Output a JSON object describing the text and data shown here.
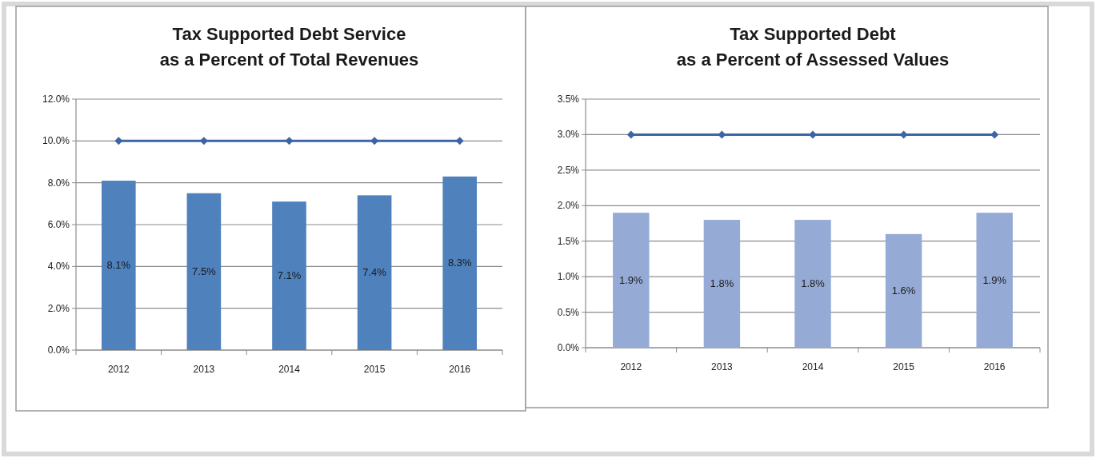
{
  "chart_data": [
    {
      "type": "bar",
      "title": "Tax Supported Debt Service\nas a Percent of Total Revenues",
      "categories": [
        "2012",
        "2013",
        "2014",
        "2015",
        "2016"
      ],
      "series": [
        {
          "color": "#4f81bd",
          "values": [
            8.1,
            7.5,
            7.1,
            7.4,
            8.3
          ],
          "value_labels": [
            "8.1%",
            "7.5%",
            "7.1%",
            "7.4%",
            "8.3%"
          ]
        },
        {
          "type": "line",
          "color": "#3c65a3",
          "values": [
            10,
            10,
            10,
            10,
            10
          ],
          "marker": "diamond"
        }
      ],
      "ylim": [
        0,
        12
      ],
      "yticks": [
        {
          "value": 0,
          "label": "0.0%"
        },
        {
          "value": 2,
          "label": "2.0%"
        },
        {
          "value": 4,
          "label": "4.0%"
        },
        {
          "value": 6,
          "label": "6.0%"
        },
        {
          "value": 8,
          "label": "8.0%"
        },
        {
          "value": 10,
          "label": "10.0%"
        },
        {
          "value": 12,
          "label": "12.0%"
        }
      ],
      "grid": "y"
    },
    {
      "type": "bar",
      "title": "Tax Supported Debt\nas a Percent of Assessed Values",
      "categories": [
        "2012",
        "2013",
        "2014",
        "2015",
        "2016"
      ],
      "series": [
        {
          "color": "#95abd6",
          "values": [
            1.9,
            1.8,
            1.8,
            1.6,
            1.9
          ],
          "value_labels": [
            "1.9%",
            "1.8%",
            "1.8%",
            "1.6%",
            "1.9%"
          ]
        },
        {
          "type": "line",
          "color": "#3c65a3",
          "values": [
            3,
            3,
            3,
            3,
            3
          ],
          "marker": "diamond"
        }
      ],
      "ylim": [
        0,
        3.5
      ],
      "yticks": [
        {
          "value": 0,
          "label": "0.0%"
        },
        {
          "value": 0.5,
          "label": "0.5%"
        },
        {
          "value": 1,
          "label": "1.0%"
        },
        {
          "value": 1.5,
          "label": "1.5%"
        },
        {
          "value": 2,
          "label": "2.0%"
        },
        {
          "value": 2.5,
          "label": "2.5%"
        },
        {
          "value": 3,
          "label": "3.0%"
        },
        {
          "value": 3.5,
          "label": "3.5%"
        }
      ],
      "grid": "y"
    }
  ]
}
